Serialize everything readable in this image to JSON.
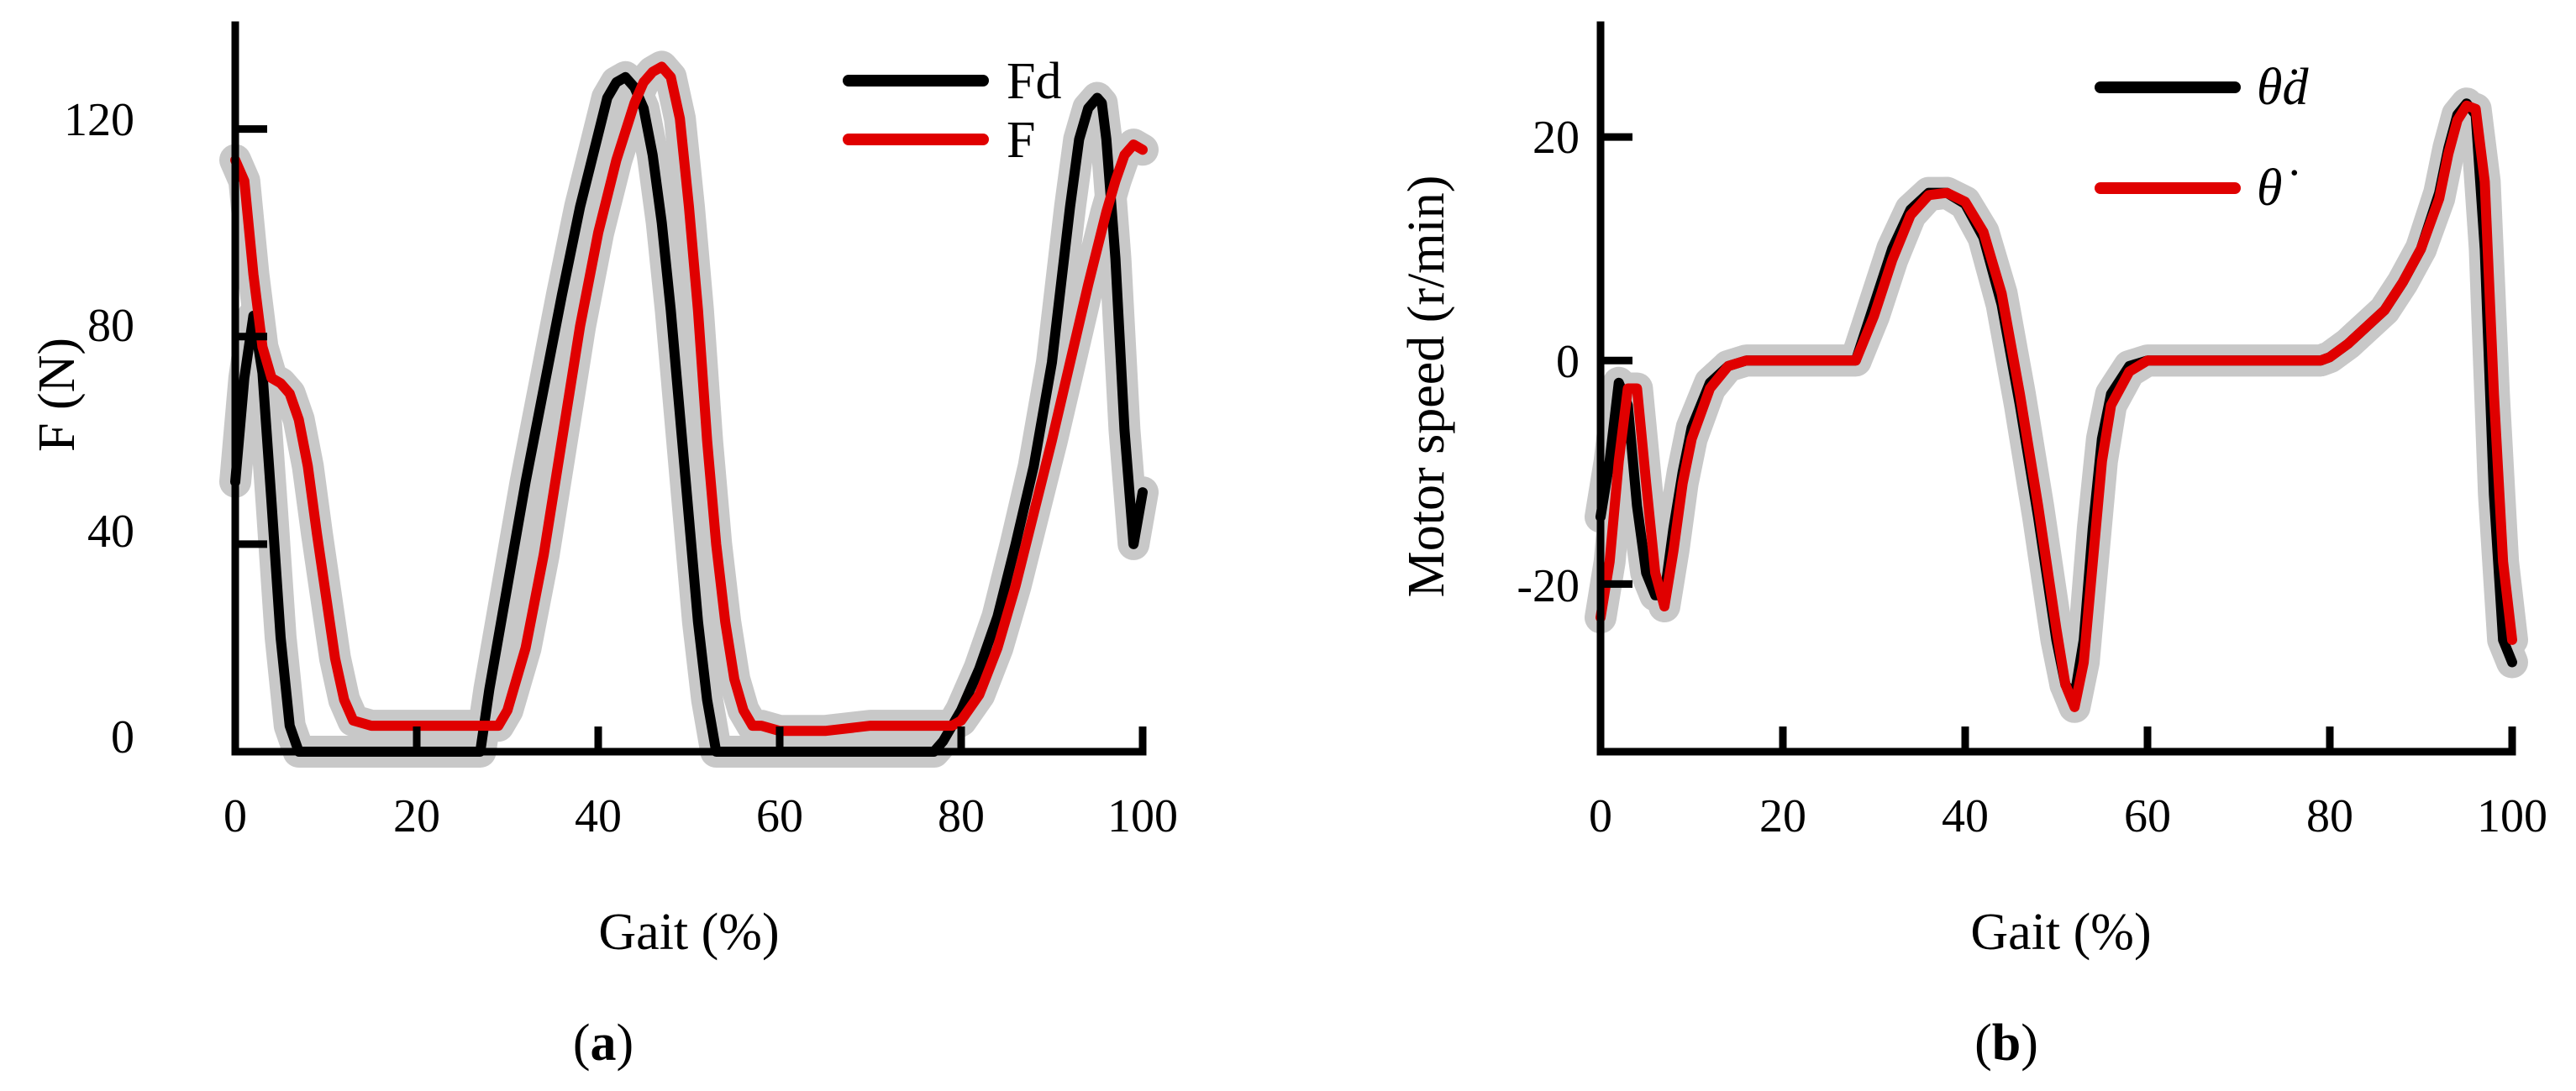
{
  "chart_data": [
    {
      "type": "line",
      "panel_label": "(a)",
      "panel_letter": "a",
      "xlabel": "Gait (%)",
      "ylabel": "F (N)",
      "xlim": [
        0,
        100
      ],
      "ylim": [
        0,
        140
      ],
      "xticks": [
        0,
        20,
        40,
        60,
        80,
        100
      ],
      "yticks": [
        0,
        40,
        80,
        120
      ],
      "legend_position": "top-right",
      "band_color": "#c8c8c8",
      "series": [
        {
          "name": "Fd",
          "color": "#000000",
          "x": [
            0,
            1,
            2,
            3,
            4,
            5,
            6,
            7,
            8,
            12,
            20,
            26,
            27,
            28,
            30,
            32,
            34,
            36,
            38,
            40,
            41,
            42,
            43,
            44,
            45,
            46,
            47,
            48,
            49,
            50,
            51,
            52,
            53,
            60,
            70,
            77,
            78,
            79,
            80,
            82,
            84,
            86,
            88,
            90,
            91,
            92,
            93,
            94,
            95,
            95.5,
            96,
            97,
            98,
            99,
            100
          ],
          "y": [
            52,
            72,
            84,
            73,
            48,
            22,
            5,
            0,
            0,
            0,
            0,
            0,
            0,
            12,
            32,
            52,
            70,
            88,
            105,
            119,
            126,
            129,
            130,
            128,
            124,
            115,
            102,
            85,
            65,
            45,
            25,
            10,
            0,
            0,
            0,
            0,
            2,
            5,
            8,
            16,
            26,
            40,
            55,
            75,
            90,
            105,
            118,
            124,
            126,
            125,
            118,
            95,
            62,
            40,
            50
          ]
        },
        {
          "name": "F",
          "color": "#e00000",
          "x": [
            0,
            1,
            2,
            3,
            4,
            5,
            6,
            7,
            8,
            9,
            10,
            11,
            12,
            13,
            15,
            20,
            25,
            29,
            30,
            32,
            34,
            36,
            38,
            40,
            42,
            44,
            45,
            46,
            47,
            48,
            49,
            50,
            51,
            52,
            53,
            54,
            55,
            56,
            57,
            58,
            60,
            65,
            70,
            75,
            79,
            80,
            82,
            84,
            86,
            88,
            90,
            92,
            94,
            96,
            97,
            98,
            99,
            100
          ],
          "y": [
            114,
            110,
            92,
            78,
            72,
            71,
            69,
            64,
            55,
            42,
            30,
            18,
            10,
            6,
            5,
            5,
            5,
            5,
            8,
            20,
            38,
            60,
            82,
            100,
            114,
            125,
            129,
            131,
            132,
            130,
            122,
            105,
            85,
            60,
            40,
            25,
            14,
            8,
            5,
            5,
            4,
            4,
            5,
            5,
            5,
            6,
            11,
            20,
            32,
            46,
            60,
            75,
            90,
            104,
            110,
            115,
            117,
            116
          ]
        }
      ]
    },
    {
      "type": "line",
      "panel_label": "(b)",
      "panel_letter": "b",
      "xlabel": "Gait (%)",
      "ylabel": "Motor speed (r/min)",
      "xlim": [
        0,
        100
      ],
      "ylim": [
        -35,
        30
      ],
      "xticks": [
        0,
        20,
        40,
        60,
        80,
        100
      ],
      "yticks": [
        -20,
        0,
        20
      ],
      "legend_position": "top-right",
      "band_color": "#c8c8c8",
      "series": [
        {
          "name": "θ̇d",
          "color": "#000000",
          "x": [
            0,
            1,
            2,
            3,
            4,
            5,
            6,
            7,
            8,
            9,
            10,
            12,
            14,
            16,
            20,
            25,
            28,
            30,
            32,
            34,
            36,
            38,
            40,
            42,
            44,
            46,
            48,
            50,
            51,
            52,
            53,
            54,
            55,
            56,
            58,
            60,
            65,
            70,
            75,
            79,
            80,
            82,
            84,
            86,
            88,
            90,
            92,
            93,
            94,
            95,
            96,
            97,
            98,
            99,
            100
          ],
          "y": [
            -14,
            -9,
            -2,
            -4,
            -13,
            -19,
            -21,
            -21,
            -15,
            -10,
            -6,
            -2,
            -0.5,
            0,
            0,
            0,
            0,
            5,
            10,
            13.5,
            15,
            15,
            14,
            11,
            5,
            -4,
            -14,
            -25,
            -29,
            -30,
            -25,
            -15,
            -7,
            -3,
            -0.5,
            0,
            0,
            0,
            0,
            0,
            0.3,
            1.5,
            3,
            4.5,
            7,
            10,
            15,
            19,
            22,
            23,
            22,
            10,
            -12,
            -25,
            -27
          ]
        },
        {
          "name": "θ̇",
          "color": "#e00000",
          "x": [
            0,
            1,
            2,
            3,
            4,
            5,
            6,
            7,
            8,
            9,
            10,
            12,
            14,
            16,
            20,
            25,
            28,
            30,
            32,
            34,
            36,
            38,
            40,
            42,
            44,
            46,
            48,
            50,
            51,
            52,
            53,
            54,
            55,
            56,
            58,
            60,
            65,
            70,
            75,
            79,
            80,
            82,
            84,
            86,
            88,
            90,
            92,
            93,
            94,
            95,
            96,
            97,
            98,
            99,
            100
          ],
          "y": [
            -23,
            -18,
            -9,
            -2.5,
            -2.5,
            -11,
            -19,
            -22,
            -17,
            -11,
            -7,
            -2.5,
            -0.5,
            0,
            0,
            0,
            0,
            4,
            9,
            13,
            14.8,
            15,
            14.2,
            11.5,
            6,
            -3,
            -13,
            -24,
            -29,
            -31,
            -27,
            -18,
            -9,
            -4,
            -1,
            0,
            0,
            0,
            0,
            0,
            0.3,
            1.5,
            3,
            4.5,
            7,
            10,
            14.5,
            18.5,
            21.5,
            22.8,
            22.5,
            16,
            -3,
            -18,
            -25
          ]
        }
      ]
    }
  ]
}
